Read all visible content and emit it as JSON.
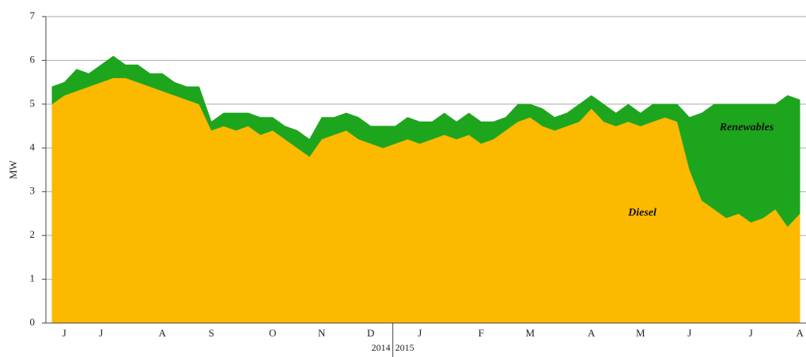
{
  "chart_data": {
    "type": "stacked_area",
    "ylabel": "MW",
    "categories": [
      null,
      "J",
      null,
      null,
      "J",
      null,
      null,
      null,
      null,
      "A",
      null,
      null,
      null,
      "S",
      null,
      null,
      null,
      null,
      "O",
      null,
      null,
      null,
      "N",
      null,
      null,
      null,
      "D",
      null,
      null,
      null,
      "J",
      null,
      null,
      null,
      null,
      "F",
      null,
      null,
      null,
      "M",
      null,
      null,
      null,
      null,
      "A",
      null,
      null,
      null,
      "M",
      null,
      null,
      null,
      "J",
      null,
      null,
      null,
      null,
      "J",
      null,
      null,
      null,
      "A"
    ],
    "series": [
      {
        "name": "Diesel",
        "color": "#fbb900",
        "values": [
          5.0,
          5.2,
          5.3,
          5.4,
          5.5,
          5.6,
          5.6,
          5.5,
          5.4,
          5.3,
          5.2,
          5.1,
          5.0,
          4.4,
          4.5,
          4.4,
          4.5,
          4.3,
          4.4,
          4.2,
          4.0,
          3.8,
          4.2,
          4.3,
          4.4,
          4.2,
          4.1,
          4.0,
          4.1,
          4.2,
          4.1,
          4.2,
          4.3,
          4.2,
          4.3,
          4.1,
          4.2,
          4.4,
          4.6,
          4.7,
          4.5,
          4.4,
          4.5,
          4.6,
          4.9,
          4.6,
          4.5,
          4.6,
          4.5,
          4.6,
          4.7,
          4.6,
          3.5,
          2.8,
          2.6,
          2.4,
          2.5,
          2.3,
          2.4,
          2.6,
          2.2,
          2.5
        ]
      },
      {
        "name": "Renewables",
        "color": "#1ea51e",
        "values": [
          0.4,
          0.3,
          0.5,
          0.3,
          0.4,
          0.5,
          0.3,
          0.4,
          0.3,
          0.4,
          0.3,
          0.3,
          0.4,
          0.2,
          0.3,
          0.4,
          0.3,
          0.4,
          0.3,
          0.3,
          0.4,
          0.4,
          0.5,
          0.4,
          0.4,
          0.5,
          0.4,
          0.5,
          0.4,
          0.5,
          0.5,
          0.4,
          0.5,
          0.4,
          0.5,
          0.5,
          0.4,
          0.3,
          0.4,
          0.3,
          0.4,
          0.3,
          0.3,
          0.4,
          0.3,
          0.4,
          0.3,
          0.4,
          0.3,
          0.4,
          0.3,
          0.4,
          1.2,
          2.0,
          2.4,
          2.6,
          2.5,
          2.7,
          2.6,
          2.4,
          3.0,
          2.6
        ]
      }
    ],
    "year_labels": [
      "2014",
      "2015"
    ],
    "ylim": [
      0,
      7
    ],
    "yticks": [
      0,
      1,
      2,
      3,
      4,
      5,
      6,
      7
    ],
    "grid": true
  }
}
